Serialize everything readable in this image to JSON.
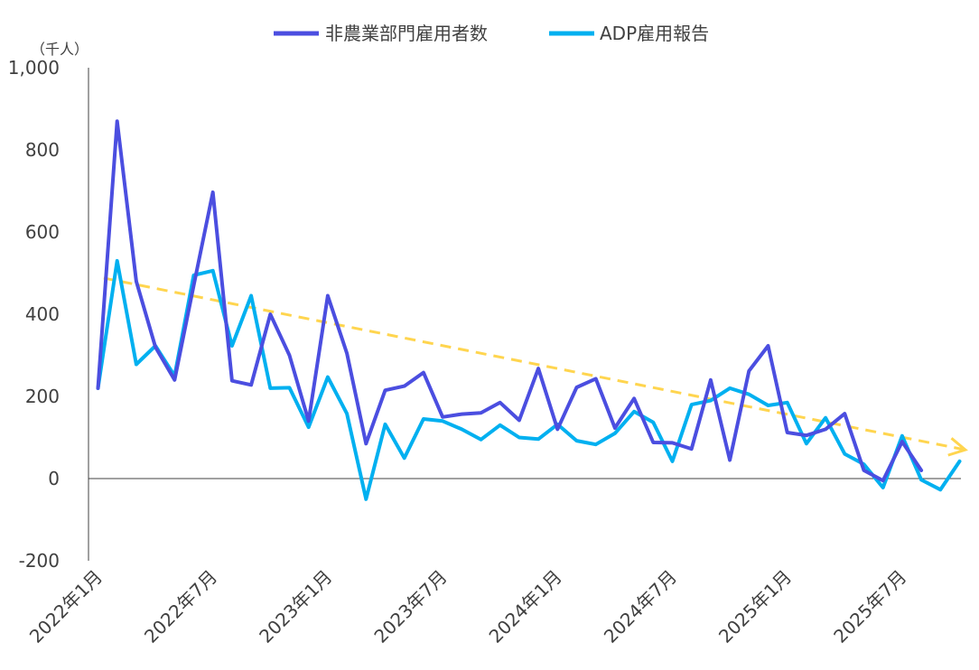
{
  "chart_data": {
    "type": "line",
    "ylabel": "（千人）",
    "ylim": [
      -200,
      1000
    ],
    "yticks": [
      {
        "value": 1000,
        "label": "1,000",
        "color": "#404040"
      },
      {
        "value": 800,
        "label": "800",
        "color": "#404040"
      },
      {
        "value": 600,
        "label": "600",
        "color": "#404040"
      },
      {
        "value": 400,
        "label": "400",
        "color": "#404040"
      },
      {
        "value": 200,
        "label": "200",
        "color": "#404040"
      },
      {
        "value": 0,
        "label": "0",
        "color": "#404040"
      },
      {
        "value": -200,
        "label": "-200",
        "color": "#ff0000"
      }
    ],
    "x_tick_labels": [
      {
        "index": 0,
        "label": "2022年1月"
      },
      {
        "index": 6,
        "label": "2022年7月"
      },
      {
        "index": 12,
        "label": "2023年1月"
      },
      {
        "index": 18,
        "label": "2023年7月"
      },
      {
        "index": 24,
        "label": "2024年1月"
      },
      {
        "index": 30,
        "label": "2024年7月"
      },
      {
        "index": 36,
        "label": "2025年1月"
      },
      {
        "index": 42,
        "label": "2025年7月"
      }
    ],
    "n_months": 46,
    "grid": false,
    "legend_position": "top",
    "series": [
      {
        "name": "非農業部門雇用者数",
        "color": "#4b4ee0",
        "values": [
          220,
          870,
          480,
          320,
          240,
          470,
          697,
          238,
          228,
          400,
          300,
          140,
          445,
          305,
          85,
          215,
          225,
          258,
          150,
          157,
          160,
          185,
          142,
          268,
          120,
          222,
          243,
          123,
          195,
          88,
          87,
          72,
          240,
          45,
          262,
          323,
          112,
          105,
          120,
          158,
          20,
          -5,
          90,
          20
        ]
      },
      {
        "name": "ADP雇用報告",
        "color": "#00b0f0",
        "values": [
          220,
          530,
          278,
          323,
          250,
          495,
          506,
          323,
          445,
          220,
          221,
          125,
          247,
          158,
          -50,
          132,
          50,
          145,
          140,
          120,
          95,
          130,
          100,
          96,
          132,
          92,
          83,
          110,
          163,
          137,
          42,
          180,
          190,
          220,
          205,
          178,
          185,
          85,
          148,
          60,
          35,
          -22,
          104,
          -3,
          -27,
          42
        ]
      }
    ],
    "trend": {
      "color": "#ffd54f",
      "start": {
        "x_index": 0.3,
        "value": 488
      },
      "end": {
        "x_index": 45.3,
        "value": 70
      }
    }
  }
}
